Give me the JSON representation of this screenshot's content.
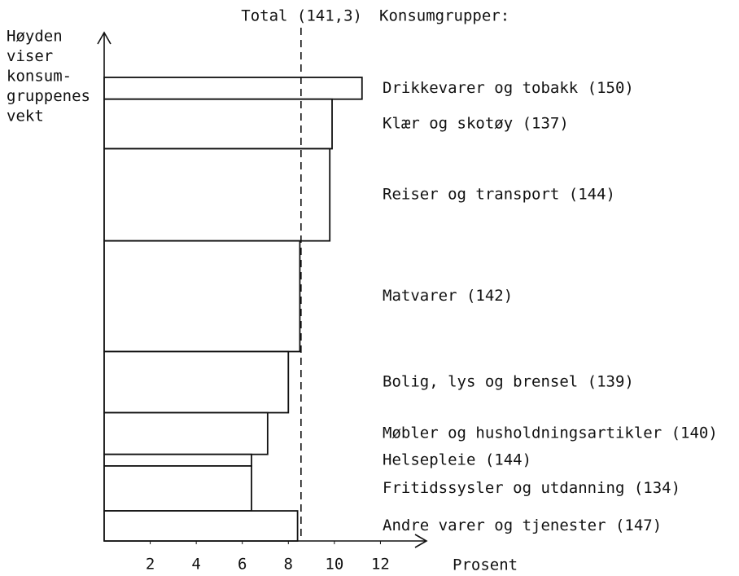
{
  "chart_data": {
    "type": "variable-width-bar",
    "legend_title": "Konsumgrupper:",
    "y_label_lines": [
      "Høyden",
      "viser",
      "konsum-",
      "gruppenes",
      "vekt"
    ],
    "x_label": "Prosent",
    "total_label": "Total (141,3)",
    "total": 8.55,
    "categories": [
      "Drikkevarer og tobakk (150)",
      "Klær og skotøy (137)",
      "Reiser og transport (144)",
      "Matvarer (142)",
      "Bolig, lys og brensel (139)",
      "Møbler og husholdningsartikler (140)",
      "Helsepleie (144)",
      "Fritidssysler og utdanning (134)",
      "Andre varer og tjenester (147)"
    ],
    "values": [
      11.2,
      9.9,
      9.8,
      8.5,
      8.0,
      7.1,
      6.4,
      6.4,
      8.4
    ],
    "weights": [
      47,
      107,
      199,
      239,
      132,
      90,
      25,
      97,
      65
    ],
    "xlim": [
      0,
      14
    ],
    "xticks": [
      2,
      4,
      6,
      8,
      10,
      12
    ]
  }
}
